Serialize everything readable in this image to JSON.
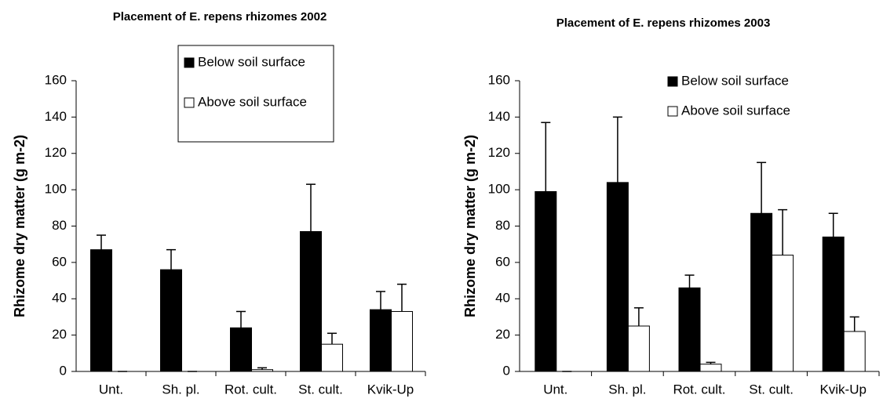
{
  "chart_data": [
    {
      "type": "bar",
      "title": "Placement of E. repens rhizomes 2002",
      "y_label": "Rhizome dry matter (g m-2)",
      "categories": [
        "Unt.",
        "Sh. pl.",
        "Rot. cult.",
        "St. cult.",
        "Kvik-Up"
      ],
      "series": [
        {
          "name": "Below soil surface",
          "color": "#000000",
          "values": [
            67,
            56,
            24,
            77,
            34
          ],
          "errors": [
            8,
            11,
            9,
            26,
            10
          ]
        },
        {
          "name": "Above soil surface",
          "color": "#ffffff",
          "values": [
            0,
            0,
            1,
            15,
            33
          ],
          "errors": [
            0,
            0,
            1,
            6,
            15
          ]
        }
      ],
      "ylim": [
        0,
        160
      ],
      "yticks": [
        0,
        20,
        40,
        60,
        80,
        100,
        120,
        140,
        160
      ],
      "legend_frame": true
    },
    {
      "type": "bar",
      "title": "Placement of E. repens rhizomes 2003",
      "y_label": "Rhizome dry matter (g m-2)",
      "categories": [
        "Unt.",
        "Sh. pl.",
        "Rot. cult.",
        "St. cult.",
        "Kvik-Up"
      ],
      "series": [
        {
          "name": "Below soil surface",
          "color": "#000000",
          "values": [
            99,
            104,
            46,
            87,
            74
          ],
          "errors": [
            38,
            36,
            7,
            28,
            13
          ]
        },
        {
          "name": "Above soil surface",
          "color": "#ffffff",
          "values": [
            0,
            25,
            4,
            64,
            22
          ],
          "errors": [
            0,
            10,
            1,
            25,
            8
          ]
        }
      ],
      "ylim": [
        0,
        160
      ],
      "yticks": [
        0,
        20,
        40,
        60,
        80,
        100,
        120,
        140,
        160
      ],
      "legend_frame": false
    }
  ]
}
